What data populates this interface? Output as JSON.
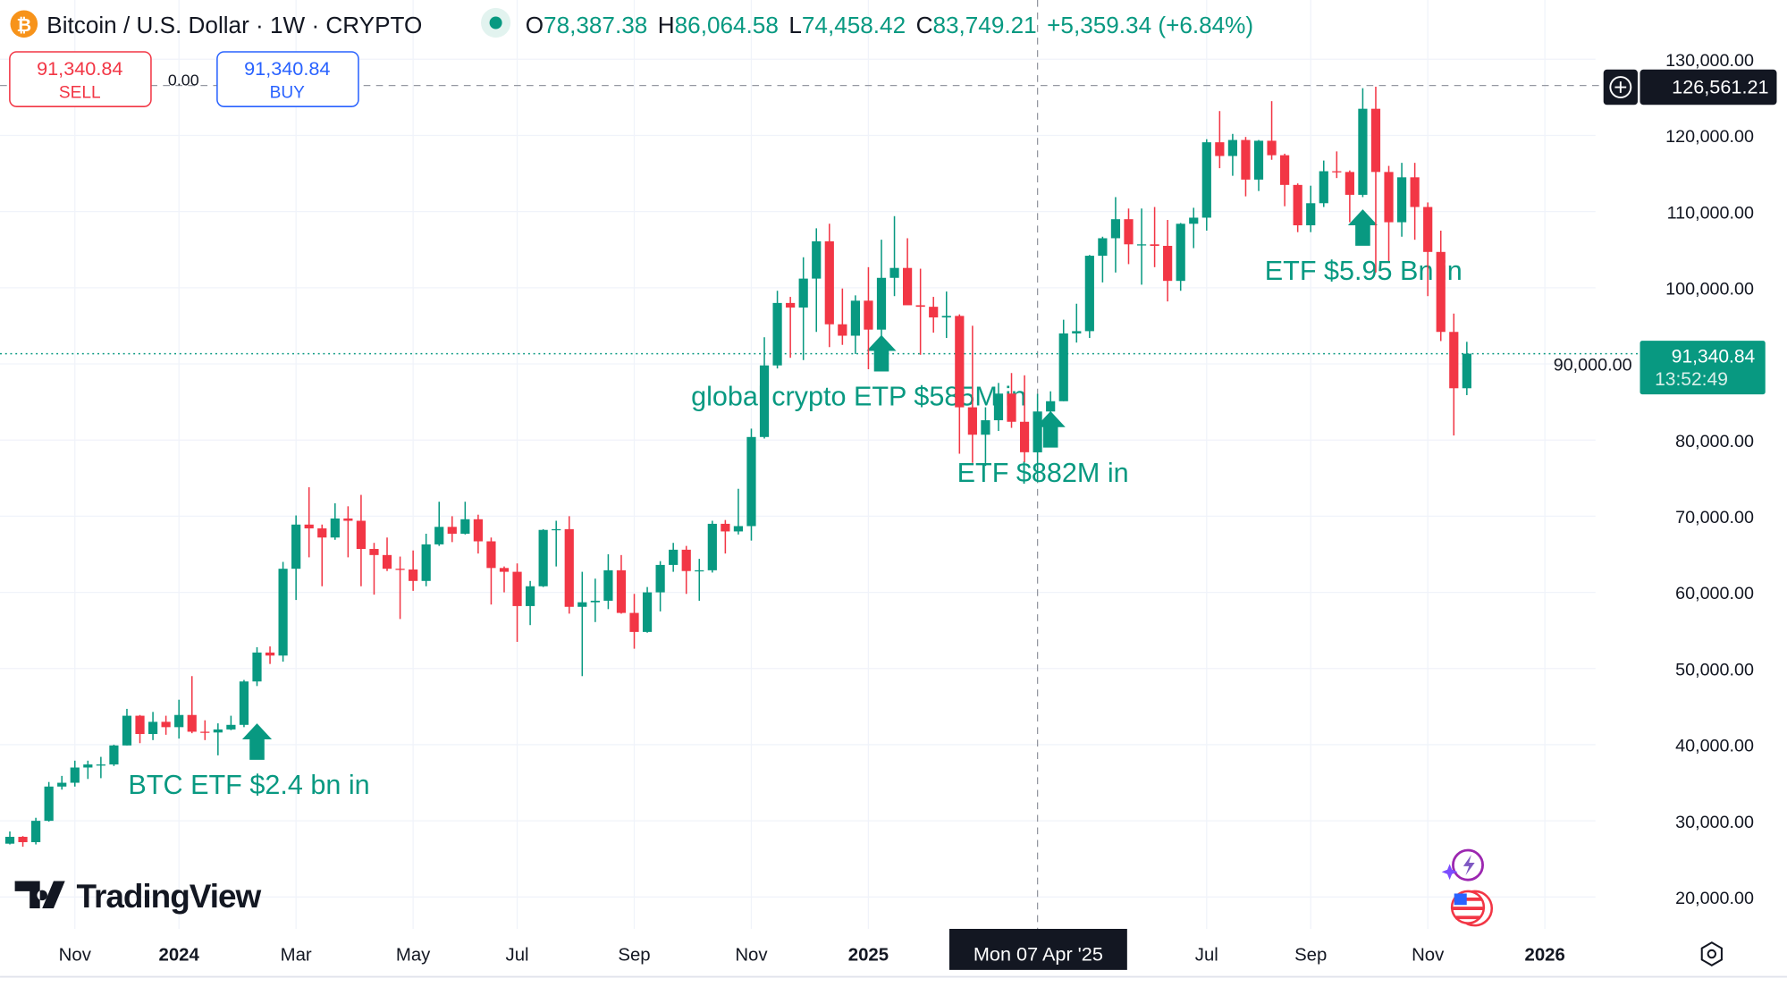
{
  "header": {
    "symbol_icon": "bitcoin-icon",
    "title": "Bitcoin / U.S. Dollar · 1W · CRYPTO",
    "status_icon": "market-open-dot",
    "o_label": "O",
    "o_value": "78,387.38",
    "h_label": "H",
    "h_value": "86,064.58",
    "l_label": "L",
    "l_value": "74,458.42",
    "c_label": "C",
    "c_value": "83,749.21",
    "change": "+5,359.34 (+6.84%)"
  },
  "trade": {
    "sell_price": "91,340.84",
    "sell_label": "SELL",
    "spread": "0.00",
    "buy_price": "91,340.84",
    "buy_label": "BUY"
  },
  "crosshair": {
    "price_label": "126,561.21",
    "date_label": "Mon 07 Apr '25",
    "add_icon": "plus-circle-icon"
  },
  "last_price": {
    "value": "91,340.84",
    "countdown": "13:52:49"
  },
  "colors": {
    "up": "#089981",
    "down": "#f23645",
    "sell": "#f23645",
    "buy": "#2962ff",
    "annotation": "#089981"
  },
  "branding": {
    "logo_text": "TradingView"
  },
  "icons": {
    "assistant": "lightning-sparkle-icon",
    "region": "us-flag-icon",
    "settings": "settings-hexagon-icon"
  },
  "chart_data": {
    "type": "candlestick",
    "interval": "1W",
    "ylim": [
      15000,
      135000
    ],
    "y_ticks": [
      "130,000.00",
      "120,000.00",
      "110,000.00",
      "100,000.00",
      "90,000.00",
      "80,000.00",
      "70,000.00",
      "60,000.00",
      "50,000.00",
      "40,000.00",
      "30,000.00",
      "20,000.00"
    ],
    "x_ticks": [
      {
        "label": "Nov",
        "date": "2023-11-06",
        "bold": false
      },
      {
        "label": "2024",
        "date": "2024-01-01",
        "bold": true
      },
      {
        "label": "Mar",
        "date": "2024-03-04",
        "bold": false
      },
      {
        "label": "May",
        "date": "2024-05-06",
        "bold": false
      },
      {
        "label": "Jul",
        "date": "2024-07-01",
        "bold": false
      },
      {
        "label": "Sep",
        "date": "2024-09-02",
        "bold": false
      },
      {
        "label": "Nov",
        "date": "2024-11-04",
        "bold": false
      },
      {
        "label": "2025",
        "date": "2025-01-06",
        "bold": true
      },
      {
        "label": "Jul",
        "date": "2025-07-07",
        "bold": false
      },
      {
        "label": "Sep",
        "date": "2025-09-01",
        "bold": false
      },
      {
        "label": "Nov",
        "date": "2025-11-03",
        "bold": false
      },
      {
        "label": "2026",
        "date": "2026-01-05",
        "bold": true
      }
    ],
    "crosshair_date": "2025-04-07",
    "crosshair_price": 126561.21,
    "last_price": 91340.84,
    "grid": true,
    "annotations": [
      {
        "text": "BTC ETF $2.4 bn in",
        "date": "2024-02-12",
        "price": 41000
      },
      {
        "text": "global crypto ETP $585M in",
        "date": "2025-01-13",
        "price": 92000
      },
      {
        "text": "ETF $882M in",
        "date": "2025-04-14",
        "price": 82000
      },
      {
        "text": "ETF $5.95 Bn in",
        "date": "2025-09-29",
        "price": 108500
      }
    ],
    "candles": [
      [
        "2023-10-02",
        27000,
        28600,
        26900,
        27900
      ],
      [
        "2023-10-09",
        27900,
        28000,
        26600,
        27200
      ],
      [
        "2023-10-16",
        27200,
        30400,
        26900,
        30000
      ],
      [
        "2023-10-23",
        30000,
        35100,
        29900,
        34500
      ],
      [
        "2023-10-30",
        34500,
        35900,
        34100,
        35000
      ],
      [
        "2023-11-06",
        35000,
        37900,
        34500,
        37000
      ],
      [
        "2023-11-13",
        37000,
        37900,
        35500,
        37400
      ],
      [
        "2023-11-20",
        37400,
        38400,
        35600,
        37400
      ],
      [
        "2023-11-27",
        37400,
        40000,
        37200,
        39900
      ],
      [
        "2023-12-04",
        39900,
        44700,
        39900,
        43800
      ],
      [
        "2023-12-11",
        43800,
        43900,
        40200,
        41400
      ],
      [
        "2023-12-18",
        41400,
        44300,
        40600,
        43000
      ],
      [
        "2023-12-25",
        43000,
        43800,
        41300,
        42300
      ],
      [
        "2024-01-01",
        42300,
        45900,
        40800,
        43900
      ],
      [
        "2024-01-08",
        43900,
        49000,
        41500,
        41700
      ],
      [
        "2024-01-15",
        41700,
        43200,
        40600,
        41600
      ],
      [
        "2024-01-22",
        41600,
        42800,
        38600,
        42000
      ],
      [
        "2024-01-29",
        42000,
        43800,
        41900,
        42600
      ],
      [
        "2024-02-05",
        42600,
        48500,
        42300,
        48300
      ],
      [
        "2024-02-12",
        48300,
        52800,
        47700,
        52100
      ],
      [
        "2024-02-19",
        52100,
        52900,
        50600,
        51700
      ],
      [
        "2024-02-26",
        51700,
        64000,
        50900,
        63100
      ],
      [
        "2024-03-04",
        63100,
        70100,
        59000,
        68900
      ],
      [
        "2024-03-11",
        68900,
        73800,
        64600,
        68400
      ],
      [
        "2024-03-18",
        68400,
        68900,
        60800,
        67200
      ],
      [
        "2024-03-25",
        67200,
        71700,
        66900,
        69700
      ],
      [
        "2024-04-01",
        69700,
        71300,
        64600,
        69400
      ],
      [
        "2024-04-08",
        69400,
        72800,
        60800,
        65700
      ],
      [
        "2024-04-15",
        65700,
        66500,
        59700,
        64900
      ],
      [
        "2024-04-22",
        64900,
        67200,
        62800,
        63100
      ],
      [
        "2024-04-29",
        63100,
        64700,
        56500,
        63000
      ],
      [
        "2024-05-06",
        63000,
        65500,
        60200,
        61500
      ],
      [
        "2024-05-13",
        61500,
        67700,
        60800,
        66300
      ],
      [
        "2024-05-20",
        66300,
        71900,
        66100,
        68600
      ],
      [
        "2024-05-27",
        68600,
        70000,
        66600,
        67700
      ],
      [
        "2024-06-03",
        67700,
        71900,
        67600,
        69600
      ],
      [
        "2024-06-10",
        69600,
        70200,
        65100,
        66700
      ],
      [
        "2024-06-17",
        66700,
        67200,
        58400,
        63200
      ],
      [
        "2024-06-24",
        63200,
        63400,
        60000,
        62700
      ],
      [
        "2024-07-01",
        62700,
        63800,
        53500,
        58200
      ],
      [
        "2024-07-08",
        58200,
        61500,
        55700,
        60800
      ],
      [
        "2024-07-15",
        60800,
        68300,
        60700,
        68200
      ],
      [
        "2024-07-22",
        68200,
        69400,
        63400,
        68300
      ],
      [
        "2024-07-29",
        68300,
        70000,
        57200,
        58100
      ],
      [
        "2024-08-05",
        58100,
        62700,
        49000,
        58700
      ],
      [
        "2024-08-12",
        58700,
        61800,
        56100,
        58900
      ],
      [
        "2024-08-19",
        58900,
        65000,
        57800,
        62900
      ],
      [
        "2024-08-26",
        62900,
        64900,
        57200,
        57300
      ],
      [
        "2024-09-02",
        57300,
        59800,
        52600,
        54800
      ],
      [
        "2024-09-09",
        54800,
        60700,
        54700,
        60000
      ],
      [
        "2024-09-16",
        60000,
        64100,
        57500,
        63600
      ],
      [
        "2024-09-23",
        63600,
        66500,
        62700,
        65600
      ],
      [
        "2024-09-30",
        65600,
        66100,
        59800,
        62800
      ],
      [
        "2024-10-07",
        62800,
        64400,
        58900,
        62900
      ],
      [
        "2024-10-14",
        62900,
        69400,
        62600,
        69000
      ],
      [
        "2024-10-21",
        69000,
        69500,
        65100,
        68000
      ],
      [
        "2024-10-28",
        68000,
        73600,
        67600,
        68700
      ],
      [
        "2024-11-04",
        68700,
        81500,
        66800,
        80400
      ],
      [
        "2024-11-11",
        80400,
        93500,
        80200,
        89800
      ],
      [
        "2024-11-18",
        89800,
        99600,
        89400,
        98000
      ],
      [
        "2024-11-25",
        98000,
        98800,
        90800,
        97400
      ],
      [
        "2024-12-02",
        97400,
        104000,
        90500,
        101200
      ],
      [
        "2024-12-09",
        101200,
        107800,
        94200,
        106100
      ],
      [
        "2024-12-16",
        106100,
        108400,
        92200,
        95200
      ],
      [
        "2024-12-23",
        95200,
        99900,
        92500,
        93700
      ],
      [
        "2024-12-30",
        93700,
        99000,
        91300,
        98300
      ],
      [
        "2025-01-06",
        98300,
        102700,
        89300,
        94500
      ],
      [
        "2025-01-13",
        94500,
        106300,
        89300,
        101300
      ],
      [
        "2025-01-20",
        101300,
        109400,
        98900,
        102600
      ],
      [
        "2025-01-27",
        102600,
        106500,
        97800,
        97700
      ],
      [
        "2025-02-03",
        97700,
        102500,
        91200,
        97500
      ],
      [
        "2025-02-10",
        97500,
        98800,
        94100,
        96100
      ],
      [
        "2025-02-17",
        96100,
        99500,
        93400,
        96300
      ],
      [
        "2025-02-24",
        96300,
        96500,
        78200,
        84300
      ],
      [
        "2025-03-03",
        84300,
        95000,
        77000,
        80700
      ],
      [
        "2025-03-10",
        80700,
        84300,
        76600,
        82600
      ],
      [
        "2025-03-17",
        82600,
        87500,
        81200,
        86100
      ],
      [
        "2025-03-24",
        86100,
        88800,
        81600,
        82400
      ],
      [
        "2025-03-31",
        82400,
        88500,
        77100,
        78400
      ],
      [
        "2025-04-07",
        78387.38,
        86064.58,
        74458.42,
        83749.21
      ],
      [
        "2025-04-14",
        83749,
        86400,
        83100,
        85100
      ],
      [
        "2025-04-21",
        85100,
        95800,
        85100,
        94000
      ],
      [
        "2025-04-28",
        94000,
        97900,
        92800,
        94300
      ],
      [
        "2025-05-05",
        94300,
        104300,
        93400,
        104200
      ],
      [
        "2025-05-12",
        104200,
        106700,
        100700,
        106500
      ],
      [
        "2025-05-19",
        106500,
        111900,
        102000,
        109000
      ],
      [
        "2025-05-26",
        109000,
        110400,
        103100,
        105700
      ],
      [
        "2025-06-02",
        105700,
        110400,
        100400,
        105700
      ],
      [
        "2025-06-09",
        105700,
        110600,
        102700,
        105500
      ],
      [
        "2025-06-16",
        105500,
        108900,
        98200,
        100900
      ],
      [
        "2025-06-23",
        100900,
        108500,
        99600,
        108400
      ],
      [
        "2025-06-30",
        108400,
        110500,
        105200,
        109200
      ],
      [
        "2025-07-07",
        109200,
        119500,
        107500,
        119100
      ],
      [
        "2025-07-14",
        119100,
        123200,
        115700,
        117300
      ],
      [
        "2025-07-21",
        117300,
        120200,
        114700,
        119400
      ],
      [
        "2025-07-28",
        119400,
        119800,
        112000,
        114200
      ],
      [
        "2025-08-04",
        114200,
        119400,
        112700,
        119300
      ],
      [
        "2025-08-11",
        119300,
        124500,
        116800,
        117400
      ],
      [
        "2025-08-18",
        117400,
        117600,
        110700,
        113500
      ],
      [
        "2025-08-25",
        113500,
        113700,
        107300,
        108200
      ],
      [
        "2025-09-01",
        108200,
        113400,
        107300,
        111100
      ],
      [
        "2025-09-08",
        111100,
        116700,
        110600,
        115300
      ],
      [
        "2025-09-15",
        115300,
        117900,
        114400,
        115200
      ],
      [
        "2025-09-22",
        115200,
        115400,
        108600,
        112200
      ],
      [
        "2025-09-29",
        112200,
        126200,
        111900,
        123500
      ],
      [
        "2025-10-06",
        123500,
        126400,
        102000,
        115200
      ],
      [
        "2025-10-13",
        115200,
        116000,
        103500,
        108600
      ],
      [
        "2025-10-20",
        108600,
        116400,
        106700,
        114500
      ],
      [
        "2025-10-27",
        114500,
        116400,
        106300,
        110600
      ],
      [
        "2025-11-03",
        110600,
        111200,
        98900,
        104700
      ],
      [
        "2025-11-10",
        104700,
        107500,
        93000,
        94200
      ],
      [
        "2025-11-17",
        94200,
        96600,
        80600,
        86800
      ],
      [
        "2025-11-24",
        86800,
        92900,
        85900,
        91340.84
      ]
    ]
  }
}
